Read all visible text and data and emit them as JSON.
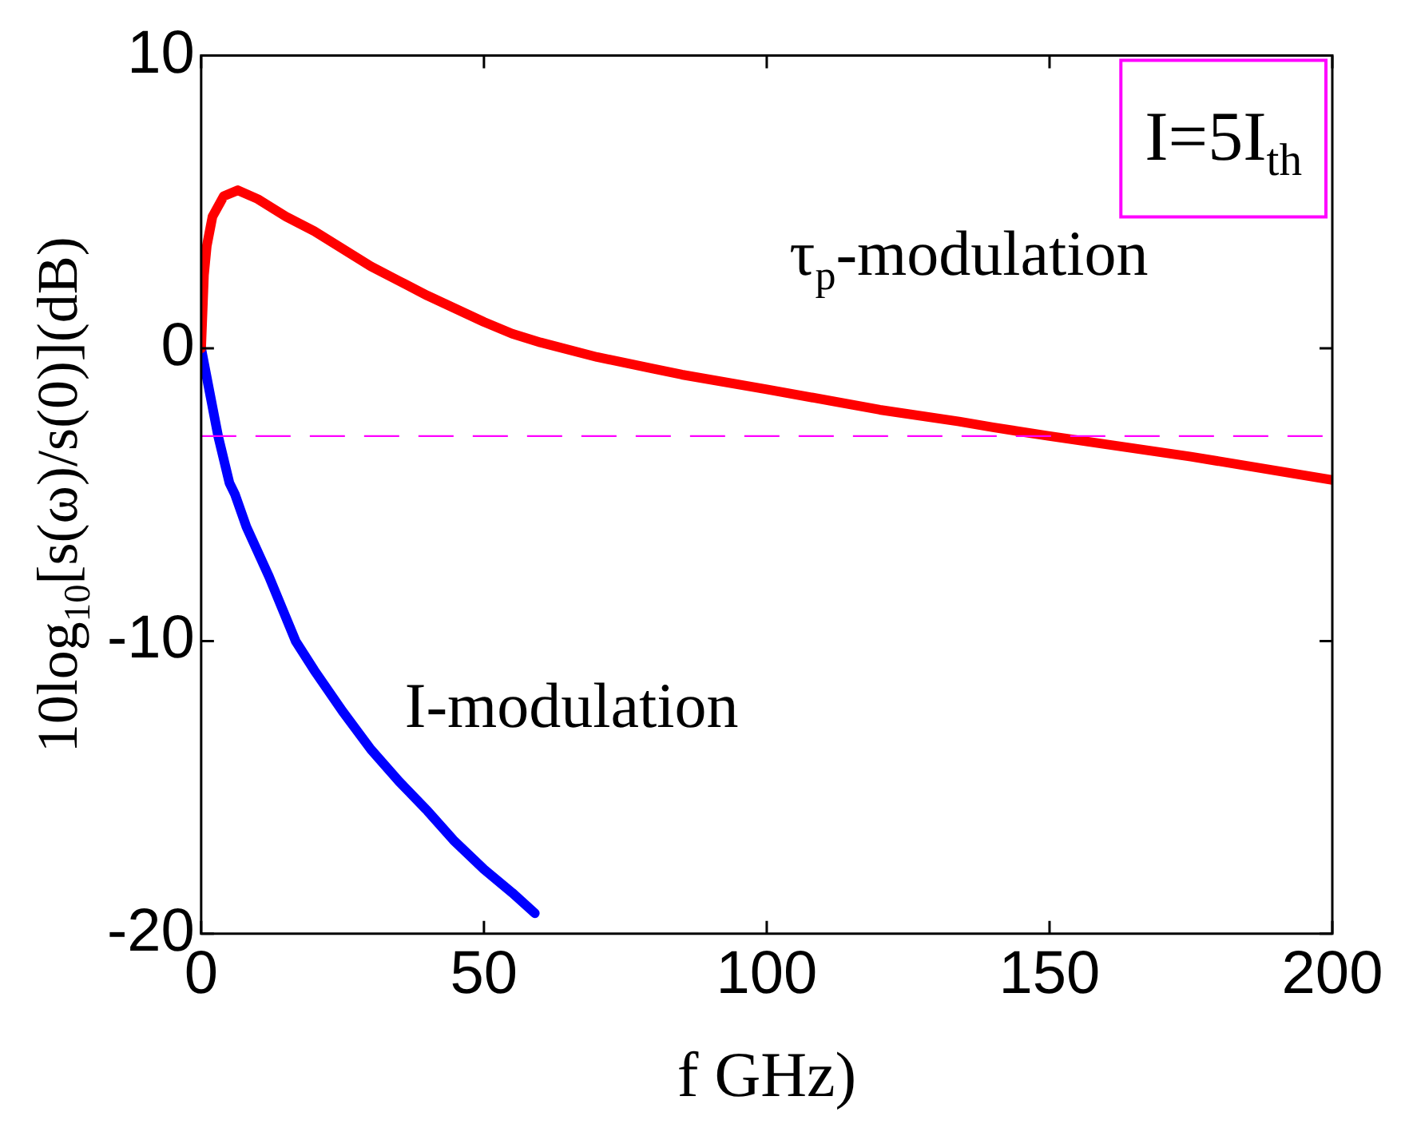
{
  "chart_data": {
    "type": "line",
    "xlabel": "f GHz)",
    "ylabel": "10log$_{10}$[s(ω)/s(0)](dB)",
    "xlim": [
      0,
      200
    ],
    "xticks": [
      0,
      50,
      100,
      150,
      200
    ],
    "ylim": [
      -20,
      10
    ],
    "yticks": [
      -20,
      -10,
      0,
      10
    ],
    "grid": false,
    "legend": false,
    "marker": "none",
    "line_style": "solid",
    "annotations": [
      "I=5I$_{th}$"
    ],
    "ref_lines": [
      {
        "axis": "y",
        "value": -3,
        "color": "#ff00ff",
        "line_style": "dashed"
      }
    ],
    "series": [
      {
        "name": "τ$_{p}$-modulation",
        "color": "#ff0000",
        "x": [
          0,
          0.5,
          1,
          2,
          4,
          6.5,
          10,
          15,
          20,
          30,
          35,
          40,
          50,
          55,
          60,
          70,
          80,
          85,
          100,
          120,
          134,
          140,
          150,
          175,
          200
        ],
        "values": [
          0,
          2.5,
          3.5,
          4.5,
          5.2,
          5.4,
          5.1,
          4.5,
          4.0,
          2.8,
          2.3,
          1.8,
          0.9,
          0.5,
          0.2,
          -0.3,
          -0.7,
          -0.9,
          -1.4,
          -2.1,
          -2.5,
          -2.7,
          -3,
          -3.7,
          -4.5
        ]
      },
      {
        "name": "I-modulation",
        "color": "#0000ff",
        "x": [
          0,
          1,
          2,
          3,
          5,
          6,
          8,
          12,
          16.7,
          20,
          25,
          30,
          35,
          40,
          44.6,
          50,
          55,
          59
        ],
        "values": [
          0,
          -1,
          -2,
          -3,
          -4.6,
          -5,
          -6.1,
          -7.8,
          -10,
          -11,
          -12.4,
          -13.7,
          -14.8,
          -15.8,
          -16.8,
          -17.8,
          -18.6,
          -19.3
        ]
      }
    ]
  }
}
